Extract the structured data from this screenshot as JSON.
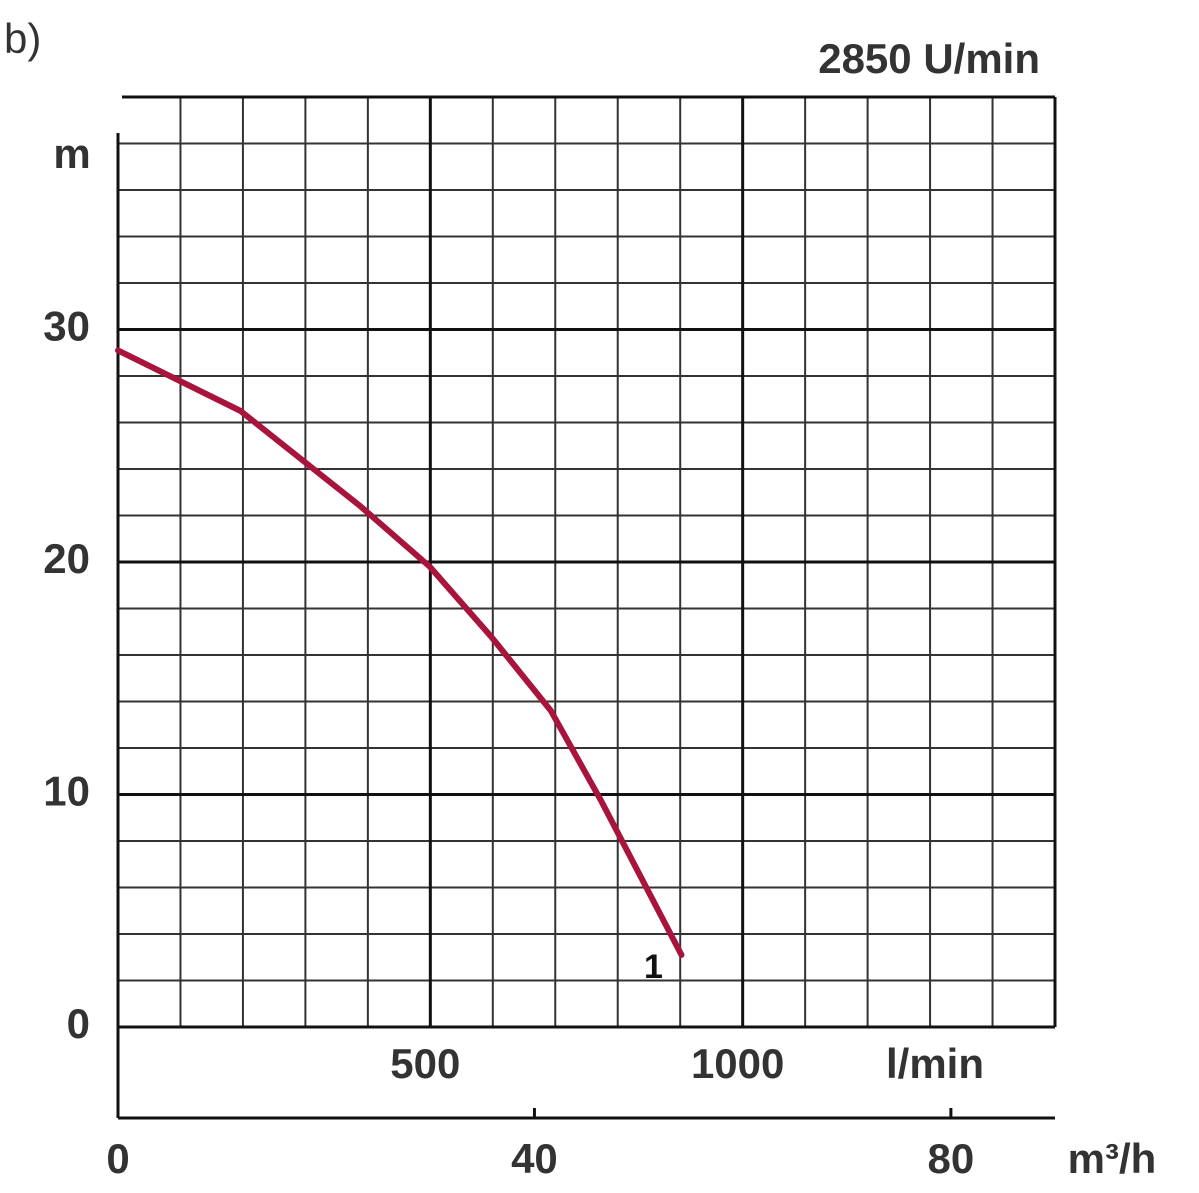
{
  "chart_data": {
    "type": "line",
    "label": "b)",
    "subtitle": "2850 U/min",
    "y_label": "m",
    "x_label": "l/min",
    "x2_label": "m³/h",
    "x": [
      0,
      196,
      388,
      499,
      597,
      693,
      774,
      902
    ],
    "series": [
      {
        "name": "1",
        "color": "#a8143c",
        "values": [
          29.1,
          26.5,
          22.4,
          19.8,
          16.8,
          13.6,
          9.7,
          3.1
        ]
      }
    ],
    "xlim": [
      0,
      1500
    ],
    "xticks": [
      500,
      1000
    ],
    "xminorticks": [
      100,
      200,
      300,
      400,
      600,
      700,
      800,
      900,
      1100,
      1200,
      1300,
      1400
    ],
    "x2lim": [
      0,
      90
    ],
    "x2ticks": [
      0,
      40,
      80
    ],
    "ylim": [
      0,
      40
    ],
    "yticks": [
      0,
      10,
      20,
      30
    ],
    "yminorticks": [
      2,
      4,
      6,
      8,
      12,
      14,
      16,
      18,
      22,
      24,
      26,
      28,
      32,
      34,
      36,
      38
    ],
    "grid": true
  }
}
